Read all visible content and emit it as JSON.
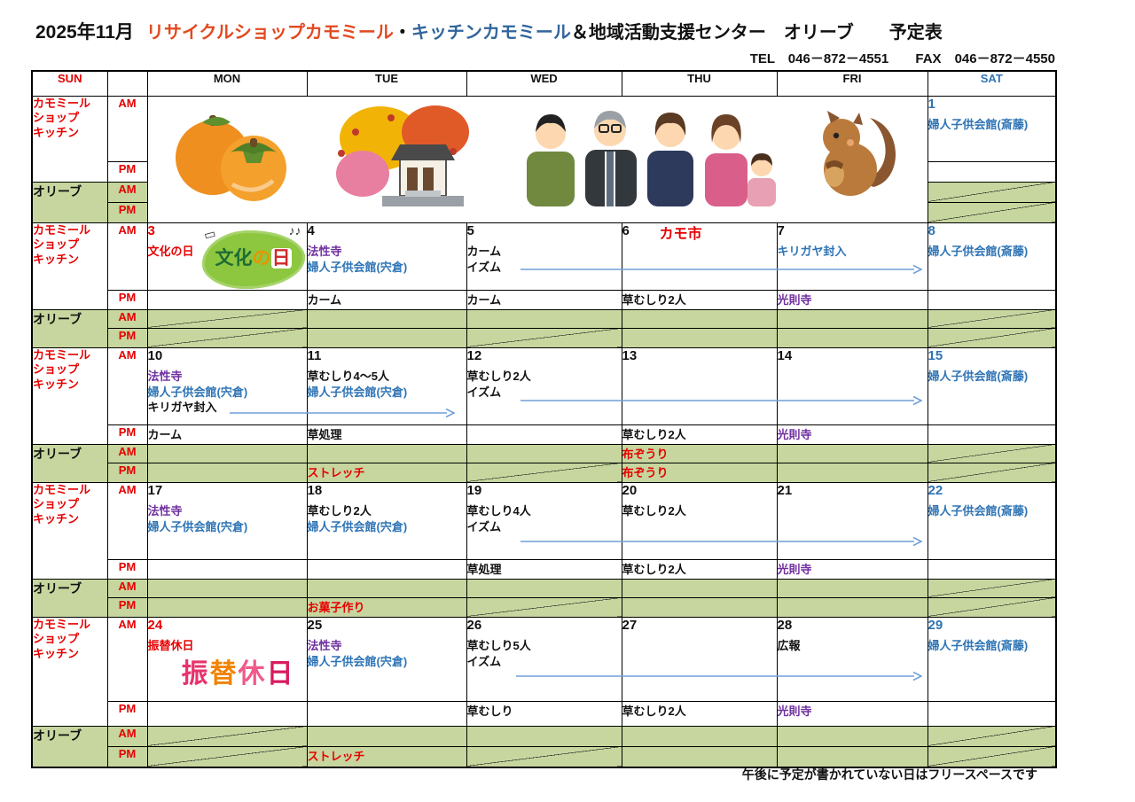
{
  "colors": {
    "red": "#e60000",
    "blue": "#2e74b5",
    "purple": "#7030a0",
    "black": "#111111",
    "green": "#c6d69e",
    "arrow": "#6f9fd8",
    "titleorange": "#e2491f",
    "titleblue": "#31659c"
  },
  "title": {
    "month": "2025年11月",
    "shop": "リサイクルショップカモミール",
    "sep": "・",
    "kitchen": "キッチンカモミール",
    "rest": "＆地域活動支援センター　オリーブ　　予定表",
    "tel": "TEL　046－872－4551",
    "fax": "FAX　046－872－4550"
  },
  "header": {
    "days": [
      {
        "label": "SUN",
        "color": "red"
      },
      {
        "label": "MON",
        "color": "black"
      },
      {
        "label": "TUE",
        "color": "black"
      },
      {
        "label": "WED",
        "color": "black"
      },
      {
        "label": "THU",
        "color": "black"
      },
      {
        "label": "FRI",
        "color": "black"
      },
      {
        "label": "SAT",
        "color": "blue"
      }
    ]
  },
  "labels": {
    "kamomile_lines": [
      "カモミール",
      "ショップ",
      "キッチン"
    ],
    "olive": "オリーブ",
    "am": "AM",
    "pm": "PM"
  },
  "footer_note": "午後に予定が書かれていない日はフリースペースです",
  "images": {
    "bunka_text": "文化の日",
    "furikae_text": "振替休日",
    "week1": [
      "persimmons",
      "autumn-leaves-house",
      "family-photo",
      "squirrel-with-acorn"
    ]
  },
  "weeks": [
    {
      "days": [
        {
          "num": "1",
          "num_color": "blue",
          "am": [
            {
              "text": "婦人子供会館(斎藤)",
              "color": "blue"
            }
          ],
          "olive_am": "crossed",
          "olive_pm": "crossed"
        }
      ]
    },
    {
      "days": [
        {
          "num": "3",
          "num_color": "red",
          "sub": {
            "text": "文化の日",
            "color": "red"
          },
          "badge": "bunka",
          "am": [],
          "olive_am": "crossed",
          "olive_pm": "crossed"
        },
        {
          "num": "4",
          "am": [
            {
              "text": "法性寺",
              "color": "purple"
            },
            {
              "text": "婦人子供会館(宍倉)",
              "color": "blue"
            }
          ],
          "pm": {
            "text": "カーム",
            "color": "black"
          }
        },
        {
          "num": "5",
          "am": [
            {
              "text": "カーム",
              "color": "black"
            },
            {
              "text": "イズム",
              "color": "black"
            }
          ],
          "pm": {
            "text": "カーム",
            "color": "black"
          },
          "olive_pm": "crossed"
        },
        {
          "num": "6",
          "headline": {
            "text": "カモ市",
            "color": "red"
          },
          "am": [],
          "pm": {
            "text": "草むしり2人",
            "color": "black"
          }
        },
        {
          "num": "7",
          "am": [
            {
              "text": "キリガヤ封入",
              "color": "blue"
            }
          ],
          "pm": {
            "text": "光則寺",
            "color": "purple"
          }
        },
        {
          "num": "8",
          "num_color": "blue",
          "am": [
            {
              "text": "婦人子供会館(斎藤)",
              "color": "blue"
            }
          ],
          "olive_am": "crossed",
          "olive_pm": "crossed"
        }
      ],
      "arrows": [
        {
          "note": "WED→FRI"
        }
      ]
    },
    {
      "days": [
        {
          "num": "10",
          "am": [
            {
              "text": "法性寺",
              "color": "purple"
            },
            {
              "text": "婦人子供会館(宍倉)",
              "color": "blue"
            },
            {
              "text": "キリガヤ封入",
              "color": "black"
            }
          ],
          "pm": {
            "text": "カーム",
            "color": "black"
          }
        },
        {
          "num": "11",
          "am": [
            {
              "text": "草むしり4～5人",
              "color": "black"
            },
            {
              "text": "婦人子供会館(宍倉)",
              "color": "blue"
            }
          ],
          "pm": {
            "text": "草処理",
            "color": "black"
          },
          "olive_pm": {
            "text": "ストレッチ",
            "color": "red"
          }
        },
        {
          "num": "12",
          "am": [
            {
              "text": "草むしり2人",
              "color": "black"
            },
            {
              "text": "イズム",
              "color": "black"
            }
          ],
          "olive_pm": "crossed"
        },
        {
          "num": "13",
          "am": [],
          "pm": {
            "text": "草むしり2人",
            "color": "black"
          },
          "olive_am": {
            "text": "布ぞうり",
            "color": "red"
          },
          "olive_pm": {
            "text": "布ぞうり",
            "color": "red"
          }
        },
        {
          "num": "14",
          "am": [],
          "pm": {
            "text": "光則寺",
            "color": "purple"
          }
        },
        {
          "num": "15",
          "num_color": "blue",
          "am": [
            {
              "text": "婦人子供会館(斎藤)",
              "color": "blue"
            }
          ],
          "olive_am": "crossed",
          "olive_pm": "crossed"
        }
      ],
      "arrows": [
        {
          "note": "MON→TUE"
        },
        {
          "note": "WED→FRI"
        }
      ]
    },
    {
      "days": [
        {
          "num": "17",
          "am": [
            {
              "text": "法性寺",
              "color": "purple"
            },
            {
              "text": "婦人子供会館(宍倉)",
              "color": "blue"
            }
          ]
        },
        {
          "num": "18",
          "am": [
            {
              "text": "草むしり2人",
              "color": "black"
            },
            {
              "text": "婦人子供会館(宍倉)",
              "color": "blue"
            }
          ],
          "olive_pm": {
            "text": "お菓子作り",
            "color": "red"
          }
        },
        {
          "num": "19",
          "am": [
            {
              "text": "草むしり4人",
              "color": "black"
            },
            {
              "text": "イズム",
              "color": "black"
            }
          ],
          "pm": {
            "text": "草処理",
            "color": "black"
          },
          "olive_pm": "crossed"
        },
        {
          "num": "20",
          "am": [
            {
              "text": "草むしり2人",
              "color": "black"
            }
          ],
          "pm": {
            "text": "草むしり2人",
            "color": "black"
          }
        },
        {
          "num": "21",
          "am": [],
          "pm": {
            "text": "光則寺",
            "color": "purple"
          }
        },
        {
          "num": "22",
          "num_color": "blue",
          "am": [
            {
              "text": "婦人子供会館(斎藤)",
              "color": "blue"
            }
          ],
          "olive_am": "crossed",
          "olive_pm": "crossed"
        }
      ],
      "arrows": [
        {
          "note": "WED→FRI"
        }
      ]
    },
    {
      "days": [
        {
          "num": "24",
          "num_color": "red",
          "sub": {
            "text": "振替休日",
            "color": "red"
          },
          "badge": "furikae",
          "am": [],
          "olive_am": "crossed",
          "olive_pm": "crossed"
        },
        {
          "num": "25",
          "am": [
            {
              "text": "法性寺",
              "color": "purple"
            },
            {
              "text": "婦人子供会館(宍倉)",
              "color": "blue"
            }
          ],
          "olive_pm": {
            "text": "ストレッチ",
            "color": "red"
          }
        },
        {
          "num": "26",
          "am": [
            {
              "text": "草むしり5人",
              "color": "black"
            },
            {
              "text": "イズム",
              "color": "black"
            }
          ],
          "pm": {
            "text": "草むしり",
            "color": "black"
          },
          "olive_pm": "crossed"
        },
        {
          "num": "27",
          "am": [],
          "pm": {
            "text": "草むしり2人",
            "color": "black"
          }
        },
        {
          "num": "28",
          "am": [
            {
              "text": "広報",
              "color": "black"
            }
          ],
          "pm": {
            "text": "光則寺",
            "color": "purple"
          }
        },
        {
          "num": "29",
          "num_color": "blue",
          "am": [
            {
              "text": "婦人子供会館(斎藤)",
              "color": "blue"
            }
          ],
          "olive_am": "crossed",
          "olive_pm": "crossed"
        }
      ],
      "arrows": [
        {
          "note": "WED→FRI"
        }
      ]
    }
  ]
}
